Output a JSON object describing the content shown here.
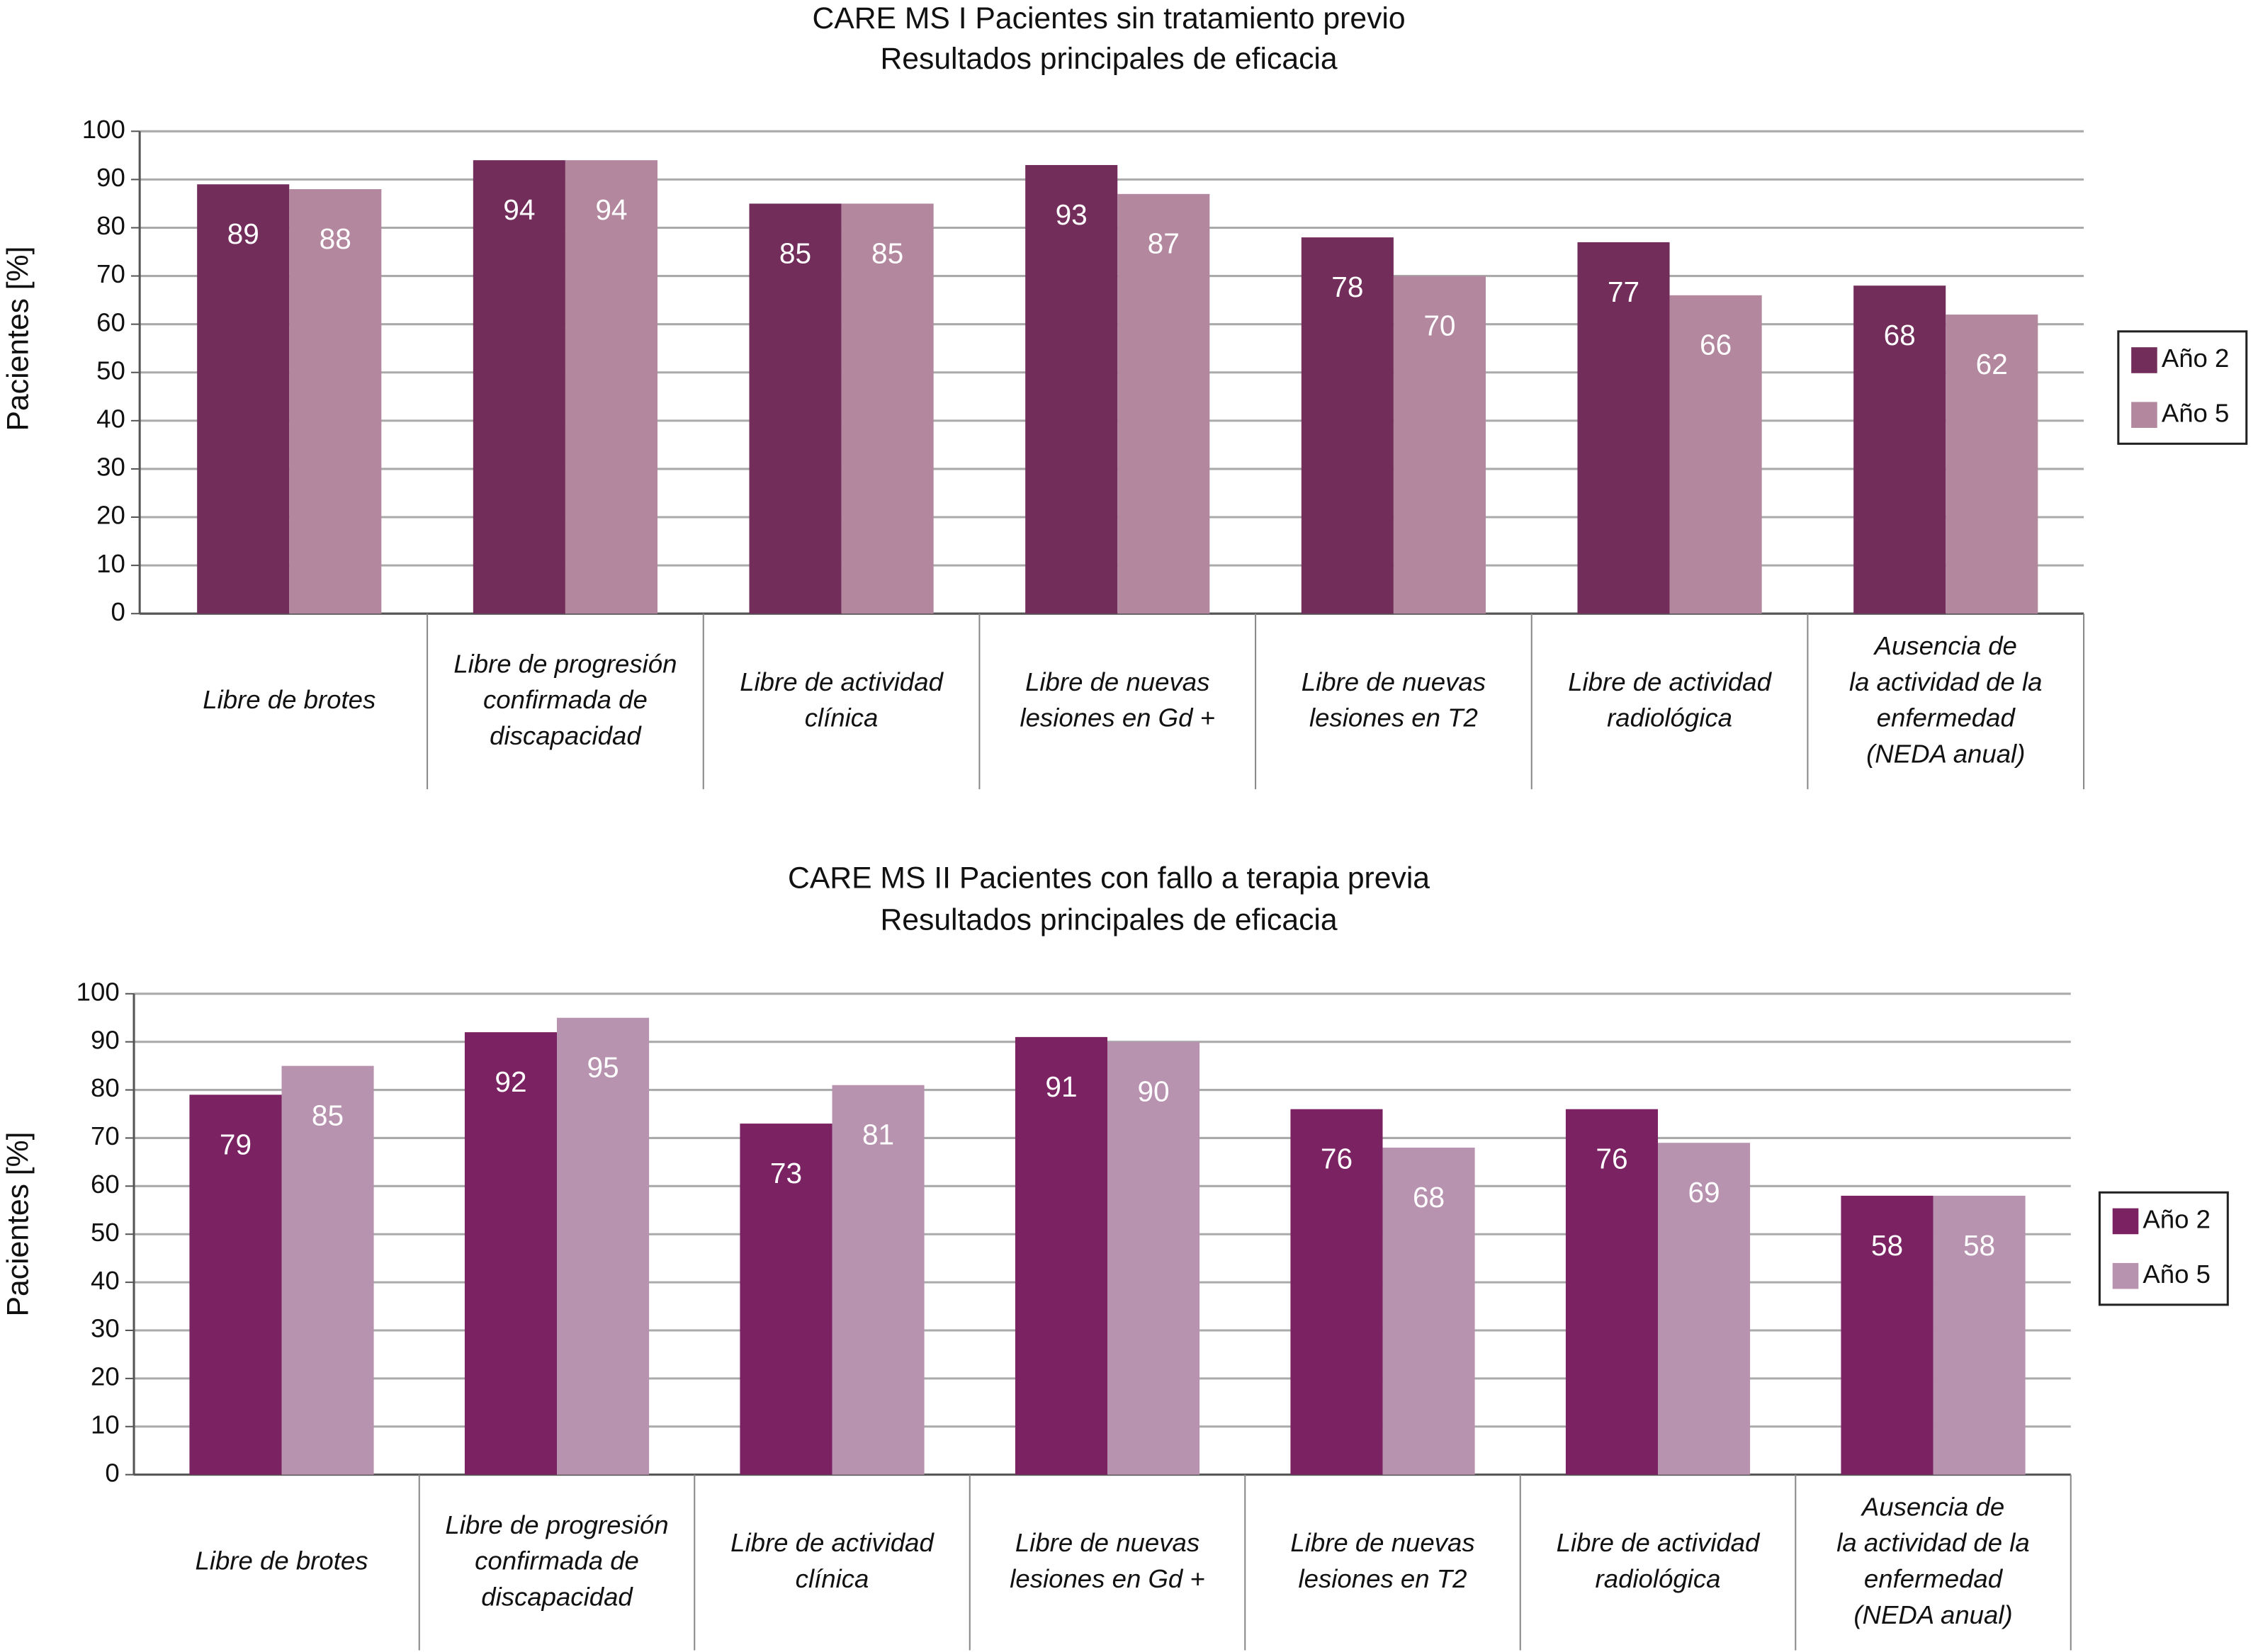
{
  "chart_data": [
    {
      "type": "bar",
      "title": "CARE MS I Pacientes sin tratamiento previo",
      "subtitle": "Resultados principales de eficacia",
      "y_label": "Pacientes [%]",
      "categories": [
        "Libre de brotes",
        "Libre de progresión\nconfirmada de\ndiscapacidad",
        "Libre de actividad\nclínica",
        "Libre de nuevas\nlesiones en Gd +",
        "Libre de nuevas\nlesiones en T2",
        "Libre de actividad\nradiológica",
        "Ausencia de\nla actividad de la\nenfermedad\n(NEDA anual)"
      ],
      "series": [
        {
          "name": "Año 2",
          "color": "#722d5a",
          "values": [
            89,
            94,
            85,
            93,
            78,
            77,
            68
          ]
        },
        {
          "name": "Año 5",
          "color": "#b3889f",
          "values": [
            88,
            94,
            85,
            87,
            70,
            66,
            62
          ]
        }
      ],
      "ylim": [
        0,
        100
      ],
      "yticks": [
        0,
        10,
        20,
        30,
        40,
        50,
        60,
        70,
        80,
        90,
        100
      ],
      "grid": true,
      "legend": "right"
    },
    {
      "type": "bar",
      "title": "CARE MS II Pacientes con fallo a terapia previa",
      "subtitle": "Resultados principales de eficacia",
      "y_label": "Pacientes [%]",
      "categories": [
        "Libre de brotes",
        "Libre de progresión\nconfirmada de\ndiscapacidad",
        "Libre de actividad\nclínica",
        "Libre de nuevas\nlesiones en Gd +",
        "Libre de nuevas\nlesiones en T2",
        "Libre de actividad\nradiológica",
        "Ausencia de\nla actividad de la\nenfermedad\n(NEDA anual)"
      ],
      "series": [
        {
          "name": "Año 2",
          "color": "#7b2262",
          "values": [
            79,
            92,
            73,
            91,
            76,
            76,
            58
          ]
        },
        {
          "name": "Año 5",
          "color": "#b893b0",
          "values": [
            85,
            95,
            81,
            90,
            68,
            69,
            58
          ]
        }
      ],
      "ylim": [
        0,
        100
      ],
      "yticks": [
        0,
        10,
        20,
        30,
        40,
        50,
        60,
        70,
        80,
        90,
        100
      ],
      "grid": true,
      "legend": "right"
    }
  ]
}
